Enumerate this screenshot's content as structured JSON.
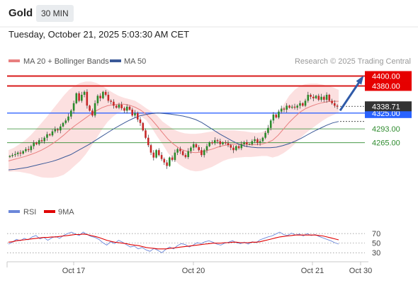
{
  "header": {
    "instrument": "Gold",
    "timeframe": "30 MIN",
    "timestamp": "Tuesday, October 21, 2025 5:03:30 AM CET"
  },
  "legend": {
    "ma20_label": "MA 20 + Bollinger Bands",
    "ma50_label": "MA 50",
    "ma20_color": "#e87f7f",
    "ma50_color": "#3b5998",
    "watermark": "Research © 2025 Trading Central"
  },
  "rsi_legend": {
    "rsi_label": "RSI",
    "ma_label": "9MA",
    "rsi_color": "#6b87d9",
    "ma_color": "#e00000"
  },
  "chart_data": [
    {
      "type": "candlestick",
      "title": "Gold",
      "x_ticks": [
        "Oct 17",
        "Oct 20",
        "Oct 21",
        "Oct 30"
      ],
      "ylim": [
        4170,
        4405
      ],
      "levels": [
        {
          "label": "4400.00",
          "value": 4400,
          "kind": "resistance",
          "color": "#d81b1b"
        },
        {
          "label": "4380.00",
          "value": 4380,
          "kind": "resistance",
          "color": "#d81b1b"
        },
        {
          "label": "4325.00",
          "value": 4325,
          "kind": "pivot",
          "color": "#3366ff"
        },
        {
          "label": "4293.00",
          "value": 4293,
          "kind": "support",
          "color": "#2e8b2e"
        },
        {
          "label": "4265.00",
          "value": 4265,
          "kind": "support",
          "color": "#2e8b2e"
        }
      ],
      "last_price": {
        "label": "4338.71",
        "value": 4338.71
      },
      "ma50_last": 4308,
      "target_arrow": {
        "from": 4330,
        "to": 4394,
        "color": "#2f5aa8"
      },
      "price_path": [
        4238,
        4240,
        4242,
        4245,
        4243,
        4248,
        4252,
        4250,
        4258,
        4265,
        4262,
        4270,
        4268,
        4275,
        4282,
        4280,
        4288,
        4292,
        4290,
        4298,
        4305,
        4310,
        4318,
        4330,
        4345,
        4365,
        4350,
        4362,
        4368,
        4340,
        4330,
        4320,
        4345,
        4360,
        4355,
        4368,
        4362,
        4350,
        4348,
        4340,
        4336,
        4342,
        4335,
        4330,
        4338,
        4332,
        4320,
        4325,
        4312,
        4305,
        4290,
        4275,
        4260,
        4245,
        4235,
        4250,
        4240,
        4232,
        4225,
        4218,
        4235,
        4230,
        4245,
        4252,
        4248,
        4240,
        4236,
        4248,
        4255,
        4262,
        4256,
        4250,
        4240,
        4250,
        4258,
        4266,
        4264,
        4270,
        4268,
        4262,
        4266,
        4264,
        4260,
        4255,
        4250,
        4258,
        4254,
        4262,
        4266,
        4262,
        4262,
        4268,
        4272,
        4265,
        4268,
        4275,
        4285,
        4295,
        4310,
        4322,
        4316,
        4328,
        4334,
        4332,
        4340,
        4336,
        4338,
        4336,
        4340,
        4345,
        4340,
        4350,
        4362,
        4358,
        4355,
        4360,
        4352,
        4358,
        4352,
        4362,
        4350,
        4345,
        4340,
        4338
      ],
      "ma20": [
        4228,
        4231,
        4234,
        4237,
        4241,
        4245,
        4250,
        4256,
        4263,
        4271,
        4280,
        4290,
        4299,
        4307,
        4315,
        4323,
        4330,
        4336,
        4340,
        4342,
        4343,
        4343,
        4341,
        4337,
        4331,
        4323,
        4312,
        4299,
        4285,
        4272,
        4262,
        4254,
        4249,
        4246,
        4245,
        4246,
        4249,
        4252,
        4256,
        4259,
        4261,
        4262,
        4262,
        4262,
        4261,
        4261,
        4262,
        4265,
        4270,
        4280,
        4293,
        4306,
        4317,
        4327,
        4334,
        4339,
        4343,
        4346,
        4348,
        4349,
        4349
      ],
      "bb_upper": [
        4250,
        4255,
        4262,
        4270,
        4280,
        4292,
        4305,
        4318,
        4332,
        4346,
        4360,
        4372,
        4380,
        4386,
        4389,
        4389,
        4386,
        4380,
        4373,
        4366,
        4360,
        4356,
        4353,
        4350,
        4343,
        4335,
        4328,
        4320,
        4308,
        4300,
        4292,
        4287,
        4284,
        4283,
        4283,
        4284,
        4286,
        4288,
        4290,
        4290,
        4290,
        4290,
        4289,
        4288,
        4286,
        4285,
        4286,
        4292,
        4305,
        4322,
        4342,
        4360,
        4372,
        4380,
        4384,
        4385,
        4385,
        4383,
        4380,
        4377,
        4372
      ],
      "bb_lower": [
        4206,
        4207,
        4206,
        4204,
        4202,
        4198,
        4195,
        4194,
        4194,
        4196,
        4200,
        4208,
        4218,
        4228,
        4241,
        4257,
        4274,
        4292,
        4307,
        4318,
        4326,
        4330,
        4329,
        4324,
        4319,
        4311,
        4296,
        4278,
        4262,
        4244,
        4232,
        4221,
        4214,
        4209,
        4207,
        4208,
        4212,
        4216,
        4222,
        4228,
        4232,
        4234,
        4235,
        4236,
        4236,
        4237,
        4238,
        4238,
        4235,
        4238,
        4244,
        4252,
        4262,
        4274,
        4284,
        4293,
        4301,
        4309,
        4316,
        4321,
        4326
      ],
      "ma50": [
        4210,
        4211,
        4213,
        4215,
        4218,
        4221,
        4224,
        4227,
        4231,
        4236,
        4241,
        4248,
        4255,
        4262,
        4270,
        4278,
        4286,
        4294,
        4301,
        4308,
        4314,
        4319,
        4322,
        4324,
        4325,
        4324,
        4323,
        4321,
        4319,
        4316,
        4312,
        4306,
        4298,
        4290,
        4282,
        4275,
        4268,
        4262,
        4258,
        4256,
        4255,
        4255,
        4255,
        4256,
        4259,
        4263,
        4268,
        4274,
        4281,
        4288,
        4294,
        4300,
        4305,
        4308
      ]
    },
    {
      "type": "line",
      "title": "RSI",
      "series": [
        {
          "name": "RSI",
          "values": [
            48,
            52,
            58,
            55,
            60,
            57,
            63,
            66,
            59,
            62,
            56,
            61,
            64,
            60,
            66,
            70,
            73,
            69,
            66,
            73,
            68,
            64,
            62,
            58,
            51,
            46,
            53,
            49,
            56,
            52,
            47,
            42,
            44,
            38,
            41,
            36,
            33,
            39,
            35,
            30,
            37,
            42,
            38,
            45,
            49,
            47,
            42,
            46,
            51,
            49,
            53,
            55,
            52,
            48,
            46,
            50,
            52,
            55,
            51,
            49,
            52,
            48,
            53,
            51,
            57,
            60,
            63,
            65,
            69,
            73,
            68,
            66,
            71,
            67,
            69,
            65,
            70,
            66,
            68,
            64,
            61,
            58,
            55,
            51,
            48
          ]
        },
        {
          "name": "9MA",
          "values": [
            52,
            53,
            55,
            56,
            57,
            58,
            59,
            60,
            61,
            62,
            62,
            63,
            63,
            64,
            65,
            66,
            67,
            68,
            68,
            69,
            68,
            66,
            64,
            62,
            59,
            56,
            54,
            52,
            51,
            50,
            49,
            47,
            46,
            45,
            43,
            41,
            40,
            39,
            38,
            38,
            38,
            39,
            40,
            41,
            42,
            43,
            44,
            45,
            46,
            47,
            48,
            49,
            50,
            50,
            50,
            51,
            51,
            52,
            52,
            51,
            51,
            51,
            52,
            52,
            53,
            55,
            57,
            59,
            61,
            63,
            64,
            65,
            66,
            67,
            67,
            67,
            67,
            67,
            67,
            66,
            65,
            63,
            61,
            59,
            57
          ]
        }
      ],
      "y_ticks": [
        "70",
        "50",
        "30"
      ],
      "ylim": [
        20,
        85
      ]
    }
  ]
}
